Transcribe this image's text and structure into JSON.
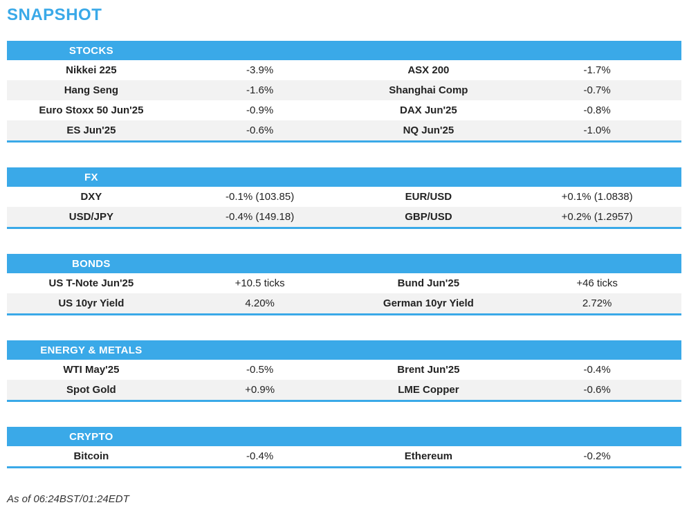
{
  "page": {
    "title": "SNAPSHOT",
    "footer": "As of 06:24BST/01:24EDT"
  },
  "colors": {
    "accent_blue": "#3aa9e8",
    "row_alt_gray": "#f2f2f2",
    "header_text": "#ffffff",
    "body_text": "#222222"
  },
  "sections": [
    {
      "header": "STOCKS",
      "rows": [
        {
          "left_label": "Nikkei 225",
          "left_value": "-3.9%",
          "right_label": "ASX 200",
          "right_value": "-1.7%"
        },
        {
          "left_label": "Hang Seng",
          "left_value": "-1.6%",
          "right_label": "Shanghai Comp",
          "right_value": "-0.7%"
        },
        {
          "left_label": "Euro Stoxx 50 Jun'25",
          "left_value": "-0.9%",
          "right_label": "DAX Jun'25",
          "right_value": "-0.8%"
        },
        {
          "left_label": "ES Jun'25",
          "left_value": "-0.6%",
          "right_label": "NQ Jun'25",
          "right_value": "-1.0%"
        }
      ]
    },
    {
      "header": "FX",
      "rows": [
        {
          "left_label": "DXY",
          "left_value": "-0.1% (103.85)",
          "right_label": "EUR/USD",
          "right_value": "+0.1% (1.0838)"
        },
        {
          "left_label": "USD/JPY",
          "left_value": "-0.4% (149.18)",
          "right_label": "GBP/USD",
          "right_value": "+0.2% (1.2957)"
        }
      ]
    },
    {
      "header": "BONDS",
      "rows": [
        {
          "left_label": "US T-Note Jun'25",
          "left_value": "+10.5 ticks",
          "right_label": "Bund Jun'25",
          "right_value": "+46 ticks"
        },
        {
          "left_label": "US 10yr Yield",
          "left_value": "4.20%",
          "right_label": "German 10yr Yield",
          "right_value": "2.72%"
        }
      ]
    },
    {
      "header": "ENERGY & METALS",
      "rows": [
        {
          "left_label": "WTI May'25",
          "left_value": "-0.5%",
          "right_label": "Brent Jun'25",
          "right_value": "-0.4%"
        },
        {
          "left_label": "Spot Gold",
          "left_value": "+0.9%",
          "right_label": "LME Copper",
          "right_value": "-0.6%"
        }
      ]
    },
    {
      "header": "CRYPTO",
      "rows": [
        {
          "left_label": "Bitcoin",
          "left_value": "-0.4%",
          "right_label": "Ethereum",
          "right_value": "-0.2%"
        }
      ]
    }
  ]
}
